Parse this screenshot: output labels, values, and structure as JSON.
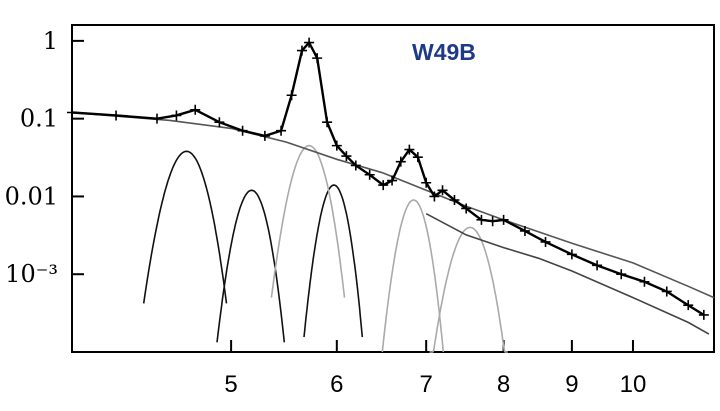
{
  "chart_data": {
    "type": "line",
    "title": "",
    "xlabel": "",
    "ylabel": "",
    "x_scale": "log",
    "y_scale": "log",
    "xlim": [
      3.8,
      11.5
    ],
    "ylim": [
      0.0001,
      1.6
    ],
    "grid": false,
    "annotation": "W49B",
    "annotation_color": "#1f3a8a",
    "x_ticks": [
      {
        "value": 5,
        "label": "5"
      },
      {
        "value": 6,
        "label": "6"
      },
      {
        "value": 7,
        "label": "7"
      },
      {
        "value": 8,
        "label": "8"
      },
      {
        "value": 9,
        "label": "9"
      },
      {
        "value": 10,
        "label": "10"
      }
    ],
    "y_ticks": [
      {
        "value": 1,
        "label": "1"
      },
      {
        "value": 0.1,
        "label": "0.1"
      },
      {
        "value": 0.01,
        "label": "0.01"
      },
      {
        "value": 0.001,
        "label": "10⁻³"
      }
    ],
    "series": [
      {
        "style": "data",
        "color": "#000000",
        "x": [
          3.8,
          4.1,
          4.4,
          4.55,
          4.7,
          4.9,
          5.1,
          5.3,
          5.45,
          5.55,
          5.65,
          5.72,
          5.8,
          5.9,
          6.0,
          6.1,
          6.2,
          6.35,
          6.5,
          6.6,
          6.7,
          6.8,
          6.9,
          7.0,
          7.1,
          7.2,
          7.35,
          7.5,
          7.7,
          7.85,
          8.0,
          8.3,
          8.6,
          9.0,
          9.4,
          9.8,
          10.2,
          10.6,
          11.0,
          11.3
        ],
        "y": [
          0.12,
          0.11,
          0.1,
          0.11,
          0.13,
          0.09,
          0.07,
          0.06,
          0.07,
          0.2,
          0.75,
          0.95,
          0.6,
          0.09,
          0.045,
          0.033,
          0.025,
          0.019,
          0.014,
          0.016,
          0.028,
          0.04,
          0.032,
          0.015,
          0.01,
          0.012,
          0.009,
          0.007,
          0.005,
          0.0048,
          0.005,
          0.0036,
          0.0026,
          0.0018,
          0.0013,
          0.001,
          0.0008,
          0.0006,
          0.0004,
          0.0003
        ]
      },
      {
        "style": "continuum",
        "color": "#555555",
        "x": [
          3.8,
          4.5,
          5.0,
          5.5,
          6.0,
          6.5,
          7.0,
          7.5,
          8.0,
          8.5,
          9.0,
          10.0,
          11.0,
          11.5
        ],
        "y": [
          0.12,
          0.095,
          0.075,
          0.05,
          0.03,
          0.02,
          0.012,
          0.0075,
          0.005,
          0.0035,
          0.0025,
          0.0014,
          0.0007,
          0.0005
        ]
      },
      {
        "style": "continuum-low",
        "color": "#444444",
        "x": [
          7.0,
          7.5,
          8.0,
          8.5,
          9.0,
          10.0,
          11.0,
          11.4
        ],
        "y": [
          0.006,
          0.0032,
          0.0022,
          0.0016,
          0.0011,
          0.0005,
          0.00024,
          0.00017
        ]
      },
      {
        "style": "component",
        "color": "#111111",
        "peaks": [
          {
            "center": 4.63,
            "height": 0.038,
            "width": 0.11
          },
          {
            "center": 5.18,
            "height": 0.012,
            "width": 0.1
          },
          {
            "center": 5.97,
            "height": 0.014,
            "width": 0.1
          }
        ]
      },
      {
        "style": "component",
        "color": "#aaaaaa",
        "peaks": [
          {
            "center": 5.72,
            "height": 0.045,
            "width": 0.12
          },
          {
            "center": 6.85,
            "height": 0.009,
            "width": 0.12
          },
          {
            "center": 7.55,
            "height": 0.004,
            "width": 0.17
          }
        ]
      }
    ]
  }
}
